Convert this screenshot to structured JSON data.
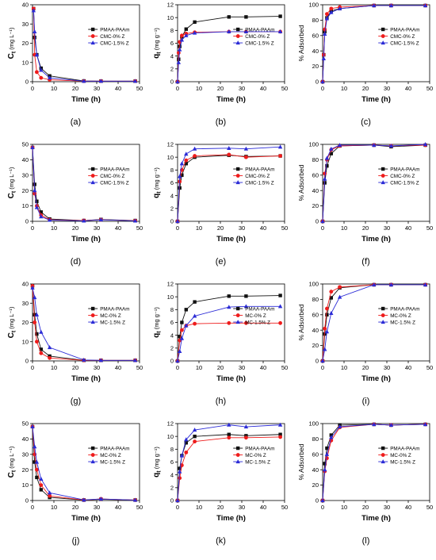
{
  "chart_data": [
    {
      "panel": "(a)",
      "type": "line",
      "xlabel": "Time (h)",
      "ylabel_main": "C",
      "ylabel_sub": "t",
      "ylabel_unit": " (mg L⁻¹)",
      "xlim": [
        0,
        50
      ],
      "ylim": [
        0,
        40
      ],
      "xticks": [
        "0",
        "10",
        "20",
        "30",
        "40",
        "50"
      ],
      "yticks": [
        "0",
        "10",
        "20",
        "30",
        "40"
      ],
      "x": [
        0.5,
        1,
        2,
        4,
        8,
        24,
        32,
        48
      ],
      "series": [
        {
          "name": "PMAA-PAAm",
          "values": [
            38,
            23,
            14,
            7,
            3,
            0.4,
            0.3,
            0.3
          ]
        },
        {
          "name": "CMC-0% Z",
          "values": [
            38,
            14,
            5,
            2,
            1,
            0.3,
            0.3,
            0.3
          ]
        },
        {
          "name": "CMC-1.5% Z",
          "values": [
            37,
            26,
            14,
            6,
            2,
            0.3,
            0.3,
            0.3
          ]
        }
      ]
    },
    {
      "panel": "(b)",
      "type": "line",
      "xlabel": "Time (h)",
      "ylabel_main": "q",
      "ylabel_sub": "t",
      "ylabel_unit": " (mg g⁻¹)",
      "xlim": [
        0,
        50
      ],
      "ylim": [
        0,
        12
      ],
      "xticks": [
        "0",
        "10",
        "20",
        "30",
        "40",
        "50"
      ],
      "yticks": [
        "0",
        "2",
        "4",
        "6",
        "8",
        "10",
        "12"
      ],
      "x": [
        0,
        0.5,
        1,
        2,
        4,
        8,
        24,
        32,
        48
      ],
      "series": [
        {
          "name": "PMAA-PAAm",
          "values": [
            0,
            3.5,
            5.5,
            7.0,
            8.2,
            9.3,
            10.1,
            10.1,
            10.2
          ]
        },
        {
          "name": "CMC-0% Z",
          "values": [
            0,
            4.5,
            6.2,
            7.2,
            7.5,
            7.7,
            7.8,
            7.8,
            7.8
          ]
        },
        {
          "name": "CMC-1.5% Z",
          "values": [
            0,
            3.0,
            5.0,
            6.5,
            7.2,
            7.6,
            7.8,
            7.8,
            7.8
          ]
        }
      ]
    },
    {
      "panel": "(c)",
      "type": "line",
      "xlabel": "Time (h)",
      "ylabel": "% Adsorbed",
      "xlim": [
        0,
        50
      ],
      "ylim": [
        0,
        100
      ],
      "xticks": [
        "0",
        "10",
        "20",
        "30",
        "40",
        "50"
      ],
      "yticks": [
        "0",
        "20",
        "40",
        "60",
        "80",
        "100"
      ],
      "x": [
        0,
        0.5,
        1,
        2,
        4,
        8,
        24,
        32,
        48
      ],
      "series": [
        {
          "name": "PMAA-PAAm",
          "values": [
            0,
            35,
            65,
            83,
            92,
            95,
            99,
            99,
            99
          ]
        },
        {
          "name": "CMC-0% Z",
          "values": [
            0,
            35,
            68,
            88,
            95,
            97,
            99,
            99,
            99
          ]
        },
        {
          "name": "CMC-1.5% Z",
          "values": [
            0,
            30,
            62,
            82,
            90,
            95,
            99,
            99,
            99
          ]
        }
      ]
    },
    {
      "panel": "(d)",
      "type": "line",
      "xlabel": "Time (h)",
      "ylabel_main": "C",
      "ylabel_sub": "t",
      "ylabel_unit": " (mg L⁻¹)",
      "xlim": [
        0,
        50
      ],
      "ylim": [
        0,
        50
      ],
      "xticks": [
        "0",
        "10",
        "20",
        "30",
        "40",
        "50"
      ],
      "yticks": [
        "0",
        "10",
        "20",
        "30",
        "40",
        "50"
      ],
      "x": [
        0,
        1,
        2,
        4,
        8,
        24,
        32,
        48
      ],
      "series": [
        {
          "name": "PMAA-PAAm",
          "values": [
            48,
            24,
            13,
            6,
            1.5,
            0.5,
            1.2,
            0.5
          ]
        },
        {
          "name": "CMC-0% Z",
          "values": [
            48,
            18,
            10,
            4,
            1,
            0.5,
            1.0,
            0.4
          ]
        },
        {
          "name": "CMC-1.5% Z",
          "values": [
            48,
            20,
            9,
            3,
            0.8,
            0.3,
            1.0,
            0.3
          ]
        }
      ]
    },
    {
      "panel": "(e)",
      "type": "line",
      "xlabel": "Time (h)",
      "ylabel_main": "q",
      "ylabel_sub": "t",
      "ylabel_unit": " (mg g⁻¹)",
      "xlim": [
        0,
        50
      ],
      "ylim": [
        0,
        12
      ],
      "xticks": [
        "0",
        "10",
        "20",
        "30",
        "40",
        "50"
      ],
      "yticks": [
        "0",
        "2",
        "4",
        "6",
        "8",
        "10",
        "12"
      ],
      "x": [
        0,
        1,
        2,
        4,
        8,
        24,
        32,
        48
      ],
      "series": [
        {
          "name": "PMAA-PAAm",
          "values": [
            0,
            5.2,
            7.2,
            9.0,
            10.0,
            10.3,
            10.1,
            10.2
          ]
        },
        {
          "name": "CMC-0% Z",
          "values": [
            0,
            6.2,
            8.0,
            9.5,
            10.2,
            10.4,
            10.0,
            10.2
          ]
        },
        {
          "name": "CMC-1.5% Z",
          "values": [
            0,
            7.0,
            9.0,
            10.5,
            11.3,
            11.4,
            11.3,
            11.6
          ]
        }
      ]
    },
    {
      "panel": "(f)",
      "type": "line",
      "xlabel": "Time (h)",
      "ylabel": "% Adsorbed",
      "xlim": [
        0,
        50
      ],
      "ylim": [
        0,
        100
      ],
      "xticks": [
        "0",
        "10",
        "20",
        "30",
        "40",
        "50"
      ],
      "yticks": [
        "0",
        "20",
        "40",
        "60",
        "80",
        "100"
      ],
      "x": [
        0,
        1,
        2,
        4,
        8,
        24,
        32,
        48
      ],
      "series": [
        {
          "name": "PMAA-PAAm",
          "values": [
            0,
            50,
            72,
            88,
            98,
            99,
            97,
            99
          ]
        },
        {
          "name": "CMC-0% Z",
          "values": [
            0,
            62,
            80,
            93,
            98,
            99,
            98,
            99
          ]
        },
        {
          "name": "CMC-1.5% Z",
          "values": [
            0,
            55,
            82,
            94,
            99,
            99,
            98,
            100
          ]
        }
      ]
    },
    {
      "panel": "(g)",
      "type": "line",
      "xlabel": "Time (h)",
      "ylabel_main": "C",
      "ylabel_sub": "t",
      "ylabel_unit": " (mg L⁻¹)",
      "xlim": [
        0,
        50
      ],
      "ylim": [
        0,
        40
      ],
      "xticks": [
        "0",
        "10",
        "20",
        "30",
        "40",
        "50"
      ],
      "yticks": [
        "0",
        "10",
        "20",
        "30",
        "40"
      ],
      "x": [
        0,
        1,
        2,
        4,
        8,
        24,
        32,
        48
      ],
      "series": [
        {
          "name": "PMAA-PAAm",
          "values": [
            39,
            24,
            14,
            6,
            2.5,
            0.3,
            0.3,
            0.3
          ]
        },
        {
          "name": "MC-0% Z",
          "values": [
            39,
            20,
            10,
            4,
            1.5,
            0.3,
            0.3,
            0.3
          ]
        },
        {
          "name": "MC-1.5% Z",
          "values": [
            38,
            33,
            24,
            15,
            7,
            0.5,
            0.3,
            0.3
          ]
        }
      ]
    },
    {
      "panel": "(h)",
      "type": "line",
      "xlabel": "Time (h)",
      "ylabel_main": "q",
      "ylabel_sub": "t",
      "ylabel_unit": " (mg g⁻¹)",
      "xlim": [
        0,
        50
      ],
      "ylim": [
        0,
        12
      ],
      "xticks": [
        "0",
        "10",
        "20",
        "30",
        "40",
        "50"
      ],
      "yticks": [
        "0",
        "2",
        "4",
        "6",
        "8",
        "10",
        "12"
      ],
      "x": [
        0,
        1,
        2,
        4,
        8,
        24,
        32,
        48
      ],
      "series": [
        {
          "name": "PMAA-PAAm",
          "values": [
            0,
            3.8,
            6.0,
            8.0,
            9.2,
            10.1,
            10.1,
            10.2
          ]
        },
        {
          "name": "MC-0% Z",
          "values": [
            0,
            3.2,
            4.8,
            5.5,
            5.8,
            5.9,
            5.9,
            5.9
          ]
        },
        {
          "name": "MC-1.5% Z",
          "values": [
            0,
            1.5,
            3.5,
            5.5,
            7.0,
            8.4,
            8.5,
            8.5
          ]
        }
      ]
    },
    {
      "panel": "(i)",
      "type": "line",
      "xlabel": "Time (h)",
      "ylabel": "% Adsorbed",
      "xlim": [
        0,
        50
      ],
      "ylim": [
        0,
        100
      ],
      "xticks": [
        "0",
        "10",
        "20",
        "30",
        "40",
        "50"
      ],
      "yticks": [
        "0",
        "20",
        "40",
        "60",
        "80",
        "100"
      ],
      "x": [
        0,
        1,
        2,
        4,
        8,
        24,
        32,
        48
      ],
      "series": [
        {
          "name": "PMAA-PAAm",
          "values": [
            0,
            35,
            60,
            82,
            95,
            99,
            99,
            99
          ]
        },
        {
          "name": "MC-0% Z",
          "values": [
            0,
            42,
            68,
            90,
            96,
            99,
            99,
            99
          ]
        },
        {
          "name": "MC-1.5% Z",
          "values": [
            0,
            15,
            38,
            62,
            83,
            99,
            99,
            99
          ]
        }
      ]
    },
    {
      "panel": "(j)",
      "type": "line",
      "xlabel": "Time (h)",
      "ylabel_main": "C",
      "ylabel_sub": "t",
      "ylabel_unit": " (mg L⁻¹)",
      "xlim": [
        0,
        50
      ],
      "ylim": [
        0,
        50
      ],
      "xticks": [
        "0",
        "10",
        "20",
        "30",
        "40",
        "50"
      ],
      "yticks": [
        "0",
        "10",
        "20",
        "30",
        "40",
        "50"
      ],
      "x": [
        0,
        1,
        2,
        4,
        8,
        24,
        32,
        48
      ],
      "series": [
        {
          "name": "PMAA-PAAm",
          "values": [
            48,
            25,
            15,
            7,
            2,
            0.3,
            0.8,
            0.3
          ]
        },
        {
          "name": "MC-0% Z",
          "values": [
            48,
            30,
            20,
            10,
            3,
            0.3,
            1.0,
            0.3
          ]
        },
        {
          "name": "MC-1.5% Z",
          "values": [
            48,
            35,
            25,
            14,
            5,
            0.4,
            1.0,
            0.3
          ]
        }
      ]
    },
    {
      "panel": "(k)",
      "type": "line",
      "xlabel": "Time (h)",
      "ylabel_main": "q",
      "ylabel_sub": "t",
      "ylabel_unit": " (mg g⁻¹)",
      "xlim": [
        0,
        50
      ],
      "ylim": [
        0,
        12
      ],
      "xticks": [
        "0",
        "10",
        "20",
        "30",
        "40",
        "50"
      ],
      "yticks": [
        "0",
        "2",
        "4",
        "6",
        "8",
        "10",
        "12"
      ],
      "x": [
        0,
        1,
        2,
        4,
        8,
        24,
        32,
        48
      ],
      "series": [
        {
          "name": "PMAA-PAAm",
          "values": [
            0,
            5.0,
            7.0,
            9.0,
            10.0,
            10.3,
            10.1,
            10.3
          ]
        },
        {
          "name": "MC-0% Z",
          "values": [
            0,
            3.5,
            5.5,
            7.5,
            9.2,
            9.8,
            9.8,
            9.9
          ]
        },
        {
          "name": "MC-1.5% Z",
          "values": [
            0,
            4.5,
            7.0,
            9.5,
            11.0,
            11.8,
            11.5,
            11.8
          ]
        }
      ]
    },
    {
      "panel": "(l)",
      "type": "line",
      "xlabel": "Time (h)",
      "ylabel": "% Adsorbed",
      "xlim": [
        0,
        50
      ],
      "ylim": [
        0,
        100
      ],
      "xticks": [
        "0",
        "10",
        "20",
        "30",
        "40",
        "50"
      ],
      "yticks": [
        "0",
        "20",
        "40",
        "60",
        "80",
        "100"
      ],
      "x": [
        0,
        1,
        2,
        4,
        8,
        24,
        32,
        48
      ],
      "series": [
        {
          "name": "PMAA-PAAm",
          "values": [
            0,
            48,
            68,
            85,
            98,
            99,
            98,
            99
          ]
        },
        {
          "name": "MC-0% Z",
          "values": [
            0,
            38,
            55,
            78,
            95,
            99,
            98,
            99
          ]
        },
        {
          "name": "MC-1.5% Z",
          "values": [
            0,
            40,
            60,
            82,
            96,
            99,
            98,
            99
          ]
        }
      ]
    }
  ],
  "series_colors": [
    "#111111",
    "#ee1c1c",
    "#2b2bd6"
  ],
  "series_markers": [
    "square",
    "circle",
    "triangle"
  ],
  "legend_position": "right"
}
